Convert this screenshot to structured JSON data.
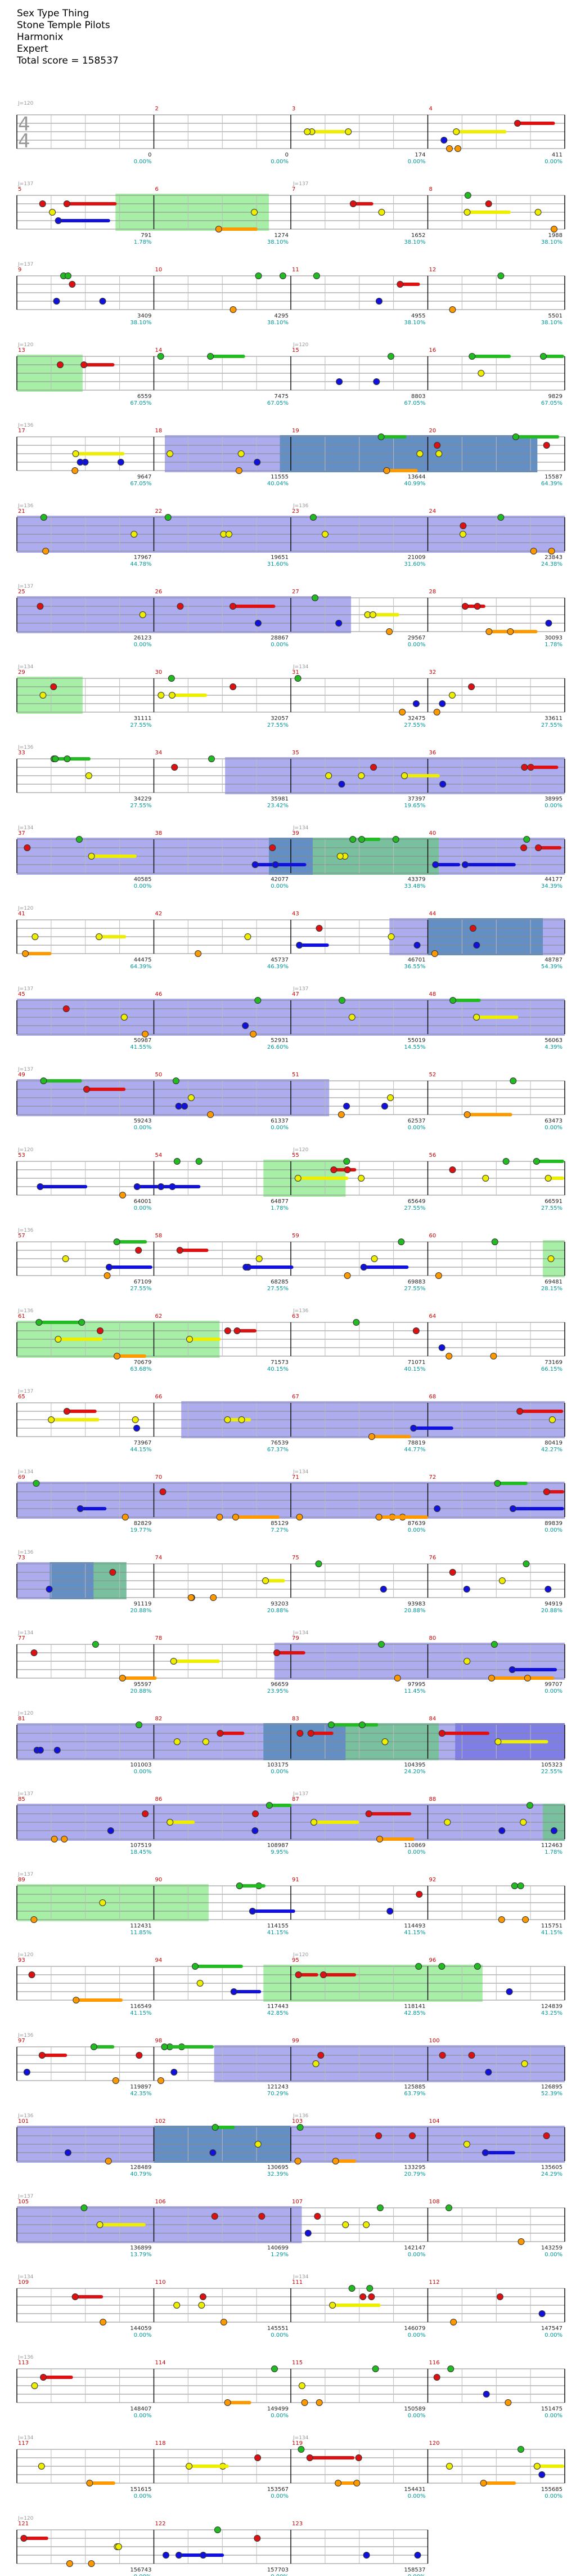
{
  "header": {
    "song": "Sex Type Thing",
    "artist": "Stone Temple Pilots",
    "charter": "Harmonix",
    "difficulty": "Expert",
    "total_score": "Total score = 158537"
  },
  "time_signature": {
    "top": "4",
    "bottom": "4"
  },
  "colors": {
    "green": "#22bb22",
    "red": "#dd1111",
    "yellow": "#eeee00",
    "blue": "#1111dd",
    "orange": "#ff9900",
    "overdrive_fill": "#22dd22",
    "star_power": "#4444dd"
  },
  "bpm_markers": [
    "J=120",
    "J=137",
    "J=137",
    "J=120",
    "J=136",
    "J=136",
    "J=137",
    "J=134",
    "J=136",
    "J=134"
  ],
  "rows": [
    {
      "bars": [
        "",
        "2",
        "3",
        "4"
      ],
      "scores": [
        "0",
        "0",
        "174",
        "411"
      ],
      "pcts": [
        "0.00%",
        "0.00%",
        "0.00%",
        "0.00%"
      ]
    },
    {
      "bars": [
        "5",
        "6",
        "7",
        "8"
      ],
      "scores": [
        "791",
        "1274",
        "1652",
        "1988"
      ],
      "pcts": [
        "1.78%",
        "38.10%",
        "38.10%",
        "38.10%"
      ]
    },
    {
      "bars": [
        "9",
        "10",
        "11",
        "12"
      ],
      "scores": [
        "3409",
        "4295",
        "4955",
        "5501"
      ],
      "pcts": [
        "38.10%",
        "38.10%",
        "38.10%",
        "38.10%"
      ]
    },
    {
      "bars": [
        "13",
        "14",
        "15",
        "16"
      ],
      "scores": [
        "6559",
        "7475",
        "8803",
        "9829"
      ],
      "pcts": [
        "67.05%",
        "67.05%",
        "67.05%",
        "67.05%"
      ]
    },
    {
      "bars": [
        "17",
        "18",
        "19",
        "20"
      ],
      "scores": [
        "9647",
        "11555",
        "13644",
        "15587"
      ],
      "pcts": [
        "67.05%",
        "40.04%",
        "40.99%",
        "64.39%"
      ]
    },
    {
      "bars": [
        "21",
        "22",
        "23",
        "24"
      ],
      "scores": [
        "17967",
        "19651",
        "21009",
        "23843"
      ],
      "pcts": [
        "44.78%",
        "31.60%",
        "31.60%",
        "24.38%"
      ]
    },
    {
      "bars": [
        "25",
        "26",
        "27",
        "28"
      ],
      "scores": [
        "26123",
        "28867",
        "29567",
        "30093"
      ],
      "pcts": [
        "0.00%",
        "0.00%",
        "0.00%",
        "1.78%"
      ]
    },
    {
      "bars": [
        "29",
        "30",
        "31",
        "32"
      ],
      "scores": [
        "31111",
        "32057",
        "32475",
        "33611"
      ],
      "pcts": [
        "27.55%",
        "27.55%",
        "27.55%",
        "27.55%"
      ]
    },
    {
      "bars": [
        "33",
        "34",
        "35",
        "36"
      ],
      "scores": [
        "34229",
        "35981",
        "37397",
        "38995"
      ],
      "pcts": [
        "27.55%",
        "23.42%",
        "19.65%",
        "0.00%"
      ]
    },
    {
      "bars": [
        "37",
        "38",
        "39",
        "40"
      ],
      "scores": [
        "40585",
        "42077",
        "43379",
        "44177"
      ],
      "pcts": [
        "0.00%",
        "0.00%",
        "33.48%",
        "34.39%"
      ]
    },
    {
      "bars": [
        "41",
        "42",
        "43",
        "44"
      ],
      "scores": [
        "44475",
        "45737",
        "46701",
        "48787"
      ],
      "pcts": [
        "64.39%",
        "46.39%",
        "36.55%",
        "54.39%"
      ]
    },
    {
      "bars": [
        "45",
        "46",
        "47",
        "48"
      ],
      "scores": [
        "50987",
        "52931",
        "55019",
        "56063"
      ],
      "pcts": [
        "41.55%",
        "26.60%",
        "14.55%",
        "4.39%"
      ]
    },
    {
      "bars": [
        "49",
        "50",
        "51",
        "52"
      ],
      "scores": [
        "59243",
        "61337",
        "62537",
        "63473"
      ],
      "pcts": [
        "0.00%",
        "0.00%",
        "0.00%",
        "0.00%"
      ]
    },
    {
      "bars": [
        "53",
        "54",
        "55",
        "56"
      ],
      "scores": [
        "64001",
        "64877",
        "65649",
        "66591"
      ],
      "pcts": [
        "0.00%",
        "1.78%",
        "27.55%",
        "27.55%"
      ]
    },
    {
      "bars": [
        "57",
        "58",
        "59",
        "60"
      ],
      "scores": [
        "67109",
        "68285",
        "69883",
        "69481"
      ],
      "pcts": [
        "27.55%",
        "27.55%",
        "27.55%",
        "28.15%"
      ]
    },
    {
      "bars": [
        "61",
        "62",
        "63",
        "64"
      ],
      "scores": [
        "70679",
        "71573",
        "71071",
        "73169"
      ],
      "pcts": [
        "63.68%",
        "40.15%",
        "40.15%",
        "66.15%"
      ]
    },
    {
      "bars": [
        "65",
        "66",
        "67",
        "68"
      ],
      "scores": [
        "73967",
        "76539",
        "78819",
        "80419"
      ],
      "pcts": [
        "44.15%",
        "67.37%",
        "44.77%",
        "42.27%"
      ]
    },
    {
      "bars": [
        "69",
        "70",
        "71",
        "72"
      ],
      "scores": [
        "82829",
        "85129",
        "87639",
        "89839"
      ],
      "pcts": [
        "19.77%",
        "7.27%",
        "0.00%",
        "0.00%"
      ]
    },
    {
      "bars": [
        "73",
        "74",
        "75",
        "76"
      ],
      "scores": [
        "91119",
        "93203",
        "93983",
        "94919"
      ],
      "pcts": [
        "20.88%",
        "20.88%",
        "20.88%",
        "20.88%"
      ]
    },
    {
      "bars": [
        "77",
        "78",
        "79",
        "80"
      ],
      "scores": [
        "95597",
        "96659",
        "97995",
        "99707"
      ],
      "pcts": [
        "20.88%",
        "23.95%",
        "11.45%",
        "0.00%"
      ]
    },
    {
      "bars": [
        "81",
        "82",
        "83",
        "84"
      ],
      "scores": [
        "101003",
        "103175",
        "104395",
        "105323"
      ],
      "pcts": [
        "0.00%",
        "0.00%",
        "24.20%",
        "22.55%"
      ]
    },
    {
      "bars": [
        "85",
        "86",
        "87",
        "88"
      ],
      "scores": [
        "107519",
        "108987",
        "110869",
        "112463"
      ],
      "pcts": [
        "18.45%",
        "9.95%",
        "0.00%",
        "1.78%"
      ]
    },
    {
      "bars": [
        "89",
        "90",
        "91",
        "92"
      ],
      "scores": [
        "112431",
        "114155",
        "114493",
        "115751"
      ],
      "pcts": [
        "11.85%",
        "41.15%",
        "41.15%",
        "41.15%"
      ]
    },
    {
      "bars": [
        "93",
        "94",
        "95",
        "96"
      ],
      "scores": [
        "116549",
        "117443",
        "118141",
        "124839"
      ],
      "pcts": [
        "41.15%",
        "42.85%",
        "42.85%",
        "43.25%"
      ]
    },
    {
      "bars": [
        "97",
        "98",
        "99",
        "100"
      ],
      "scores": [
        "119897",
        "121243",
        "125885",
        "126895"
      ],
      "pcts": [
        "42.35%",
        "70.29%",
        "63.79%",
        "52.39%"
      ]
    },
    {
      "bars": [
        "101",
        "102",
        "103",
        "104"
      ],
      "scores": [
        "128489",
        "130695",
        "133295",
        "135605"
      ],
      "pcts": [
        "40.79%",
        "32.39%",
        "20.79%",
        "24.29%"
      ]
    },
    {
      "bars": [
        "105",
        "106",
        "107",
        "108"
      ],
      "scores": [
        "136899",
        "140699",
        "142147",
        "143259"
      ],
      "pcts": [
        "13.79%",
        "1.29%",
        "0.00%",
        "0.00%"
      ]
    },
    {
      "bars": [
        "109",
        "110",
        "111",
        "112"
      ],
      "scores": [
        "144059",
        "145551",
        "146079",
        "147547"
      ],
      "pcts": [
        "0.00%",
        "0.00%",
        "0.00%",
        "0.00%"
      ]
    },
    {
      "bars": [
        "113",
        "114",
        "115",
        "116"
      ],
      "scores": [
        "148407",
        "149499",
        "150589",
        "151475"
      ],
      "pcts": [
        "0.00%",
        "0.00%",
        "0.00%",
        "0.00%"
      ]
    },
    {
      "bars": [
        "117",
        "118",
        "119",
        "120"
      ],
      "scores": [
        "151615",
        "153567",
        "154431",
        "155685"
      ],
      "pcts": [
        "0.00%",
        "0.00%",
        "0.00%",
        "0.00%"
      ]
    },
    {
      "bars": [
        "121",
        "122",
        "123"
      ],
      "scores": [
        "156743",
        "157703",
        "158537"
      ],
      "pcts": [
        "0.00%",
        "0.00%",
        "0.00%"
      ]
    }
  ]
}
